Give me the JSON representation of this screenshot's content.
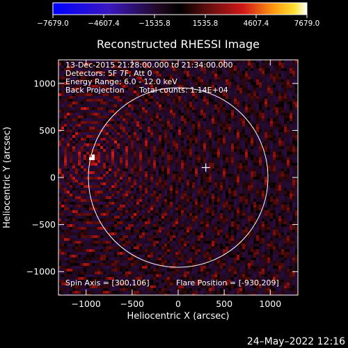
{
  "chart_data": {
    "type": "heatmap",
    "title": "Reconstructed RHESSI Image",
    "xlabel": "Heliocentric X (arcsec)",
    "ylabel": "Heliocentric Y (arcsec)",
    "xlim": [
      -1300,
      1300
    ],
    "ylim": [
      -1250,
      1250
    ],
    "xticks": [
      -1000,
      -500,
      0,
      500,
      1000
    ],
    "yticks": [
      -1000,
      -500,
      0,
      500,
      1000
    ],
    "xtick_labels": [
      "−1000",
      "−500",
      "0",
      "500",
      "1000"
    ],
    "ytick_labels": [
      "−1000",
      "−500",
      "0",
      "500",
      "1000"
    ],
    "colorbar": {
      "min": -7679.0,
      "max": 7679.0,
      "ticks": [
        -7679.0,
        -4607.4,
        -1535.8,
        1535.8,
        4607.4,
        7679.0
      ],
      "tick_labels": [
        "−7679.0",
        "−4607.4",
        "−1535.8",
        "1535.8",
        "4607.4",
        "7679.0"
      ]
    },
    "annotations": [
      "13-Dec-2015 21:28:00.000 to 21:34:00.000",
      "Detectors: 5F 7F, Att 0",
      "Energy Range: 6.0 - 12.0 keV",
      "Back Projection",
      "Total counts: 1.14E+04"
    ],
    "footer_annotations": {
      "spin_axis": "Spin Axis = [300,106]",
      "flare_position": "Flare Position = [-930,209]"
    },
    "solar_disk": {
      "center": [
        0,
        0
      ],
      "radius_arcsec": 975
    },
    "flare_source": [
      -930,
      209
    ],
    "spin_axis": [
      300,
      106
    ],
    "grid": false
  },
  "timestamp": "24–May–2022 12:16",
  "colors": {
    "background": "#000000",
    "text": "#ffffff",
    "disk_circle": "#ffffff"
  }
}
